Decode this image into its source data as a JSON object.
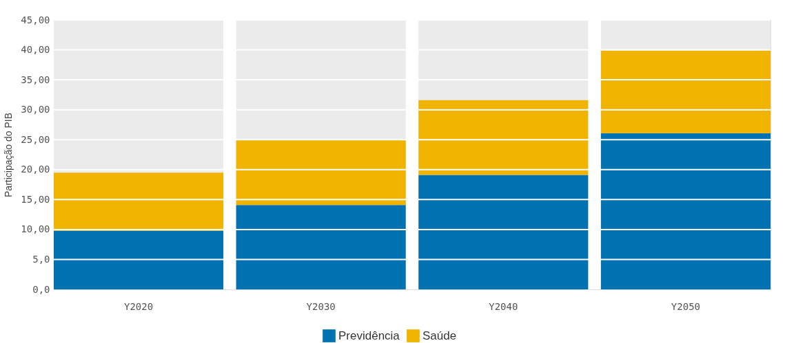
{
  "chart_data": {
    "type": "bar",
    "stacked": true,
    "ylabel": "Participação do PIB",
    "categories": [
      "Y2020",
      "Y2030",
      "Y2040",
      "Y2050"
    ],
    "series": [
      {
        "name": "Previdência",
        "color": "#0072b2",
        "values": [
          9.8,
          14.1,
          19.1,
          26.1
        ]
      },
      {
        "name": "Saúde",
        "color": "#f0b300",
        "values": [
          9.7,
          10.8,
          12.5,
          13.8
        ]
      }
    ],
    "ylim": [
      0,
      45
    ],
    "yticks": [
      {
        "value": 0,
        "label": "0,0"
      },
      {
        "value": 5,
        "label": "5,0"
      },
      {
        "value": 10,
        "label": "10,00"
      },
      {
        "value": 15,
        "label": "15,00"
      },
      {
        "value": 20,
        "label": "20,00"
      },
      {
        "value": 25,
        "label": "25,00"
      },
      {
        "value": 30,
        "label": "30,00"
      },
      {
        "value": 35,
        "label": "35,00"
      },
      {
        "value": 40,
        "label": "40,00"
      },
      {
        "value": 45,
        "label": "45,00"
      }
    ],
    "grid": "y",
    "legend": "bottom"
  }
}
